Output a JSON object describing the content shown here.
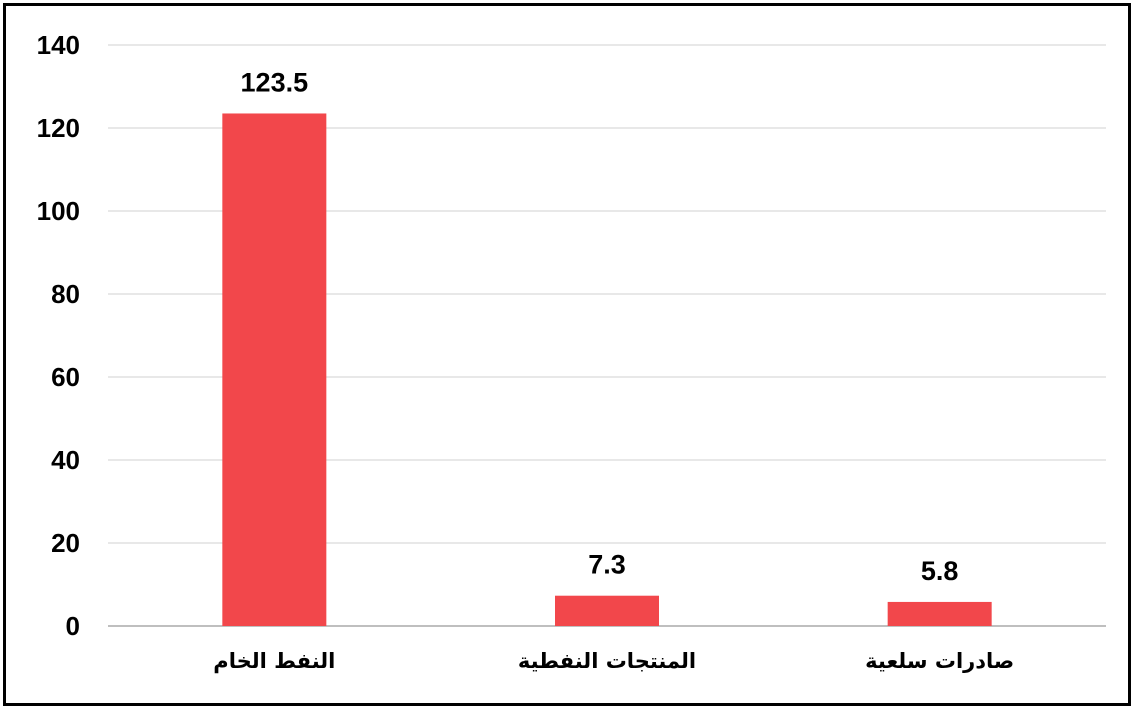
{
  "chart_data": {
    "type": "bar",
    "categories": [
      "النفط الخام",
      "المنتجات النفطية",
      "صادرات سلعية"
    ],
    "values": [
      123.5,
      7.3,
      5.8
    ],
    "data_labels": [
      "123.5",
      "7.3",
      "5.8"
    ],
    "title": "",
    "xlabel": "",
    "ylabel": "",
    "ylim": [
      0,
      140
    ],
    "yticks": [
      0,
      20,
      40,
      60,
      80,
      100,
      120,
      140
    ],
    "grid": true,
    "legend": "none",
    "colors": {
      "bar": "#f2474b",
      "grid": "#d9d9d9",
      "axis": "#bfbfbf"
    }
  }
}
